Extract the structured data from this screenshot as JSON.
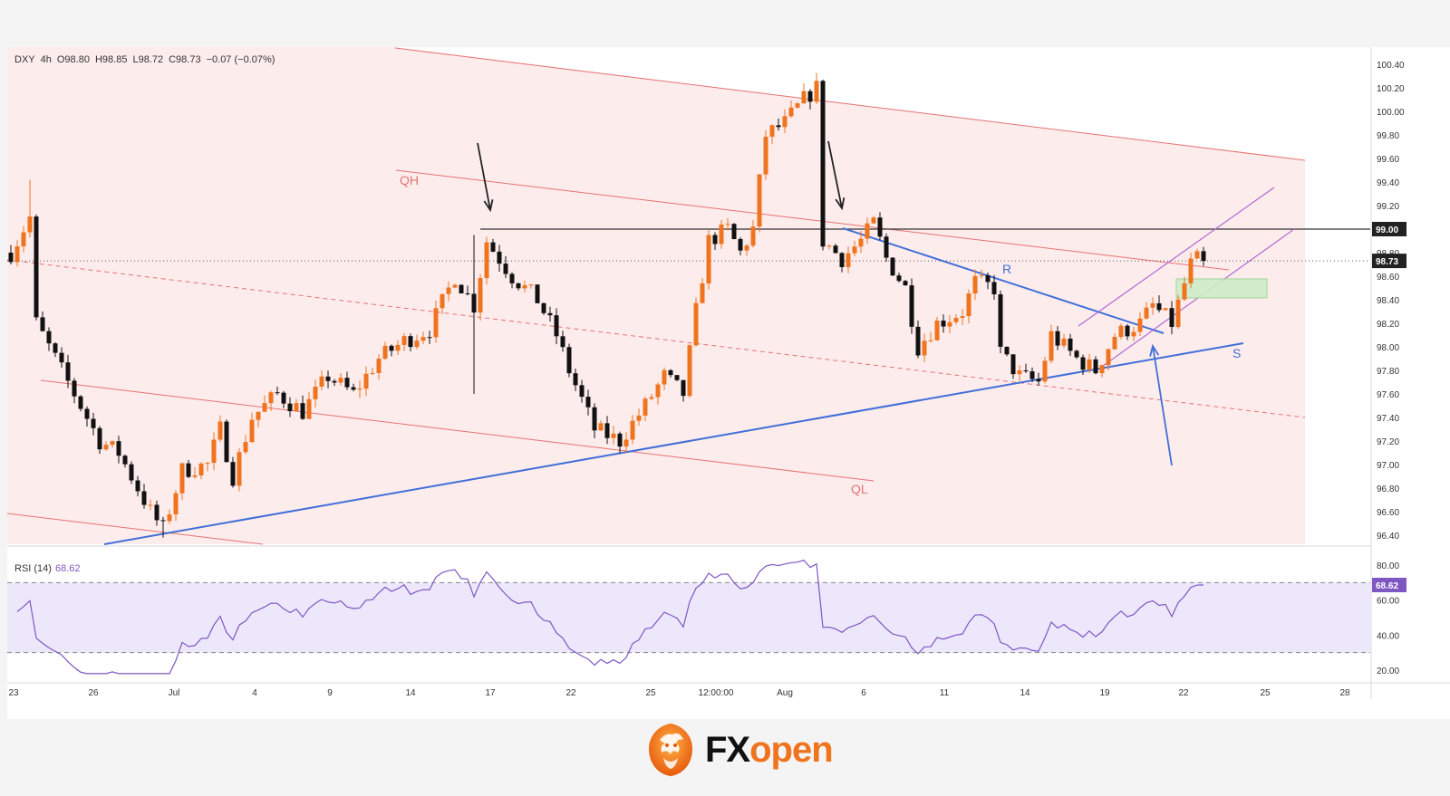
{
  "header": {
    "symbol": "DXY",
    "interval": "4h",
    "open": "O98.80",
    "high": "H98.85",
    "low": "L98.72",
    "close": "C98.73",
    "change": "−0.07 (−0.07%)"
  },
  "rsi": {
    "label": "RSI (14)",
    "value": "68.62"
  },
  "logo": {
    "fx": "FX",
    "open": "open"
  },
  "colors": {
    "up": "#f0731e",
    "down": "#111111",
    "channel": "#e57373",
    "channel_fill": "#fde9e9",
    "blue_line": "#3f6fd8",
    "purple": "#b36ad6",
    "rsi": "#7e57c2",
    "rsi_band": "#ede7fb",
    "zone": "#cdeec8"
  },
  "chart_data": [
    {
      "type": "candlestick",
      "title": "DXY, 4h",
      "y_ticks": [
        "100.40",
        "100.20",
        "100.00",
        "99.80",
        "99.60",
        "99.40",
        "99.20",
        "99.00",
        "98.80",
        "98.60",
        "98.40",
        "98.20",
        "98.00",
        "97.80",
        "97.60",
        "97.40",
        "97.20",
        "97.00",
        "96.80",
        "96.60",
        "96.40"
      ],
      "ylim": [
        96.35,
        100.45
      ],
      "x_ticks": [
        "23",
        "26",
        "Jul",
        "4",
        "9",
        "14",
        "17",
        "22",
        "25",
        "12:00:00",
        "Aug",
        "6",
        "11",
        "14",
        "19",
        "22",
        "25",
        "28"
      ],
      "price_labels": {
        "level": "99.00",
        "last": "98.73"
      },
      "path": [
        [
          0,
          98.8
        ],
        [
          3,
          99.1
        ],
        [
          4,
          98.2
        ],
        [
          7,
          97.9
        ],
        [
          10,
          97.6
        ],
        [
          14,
          97.2
        ],
        [
          17,
          97.1
        ],
        [
          22,
          96.6
        ],
        [
          24,
          96.45
        ],
        [
          27,
          96.95
        ],
        [
          31,
          97.0
        ],
        [
          33,
          97.3
        ],
        [
          35,
          96.9
        ],
        [
          38,
          97.4
        ],
        [
          42,
          97.6
        ],
        [
          46,
          97.45
        ],
        [
          50,
          97.75
        ],
        [
          54,
          97.6
        ],
        [
          58,
          97.9
        ],
        [
          62,
          98.05
        ],
        [
          66,
          98.15
        ],
        [
          70,
          98.6
        ],
        [
          73,
          98.35
        ],
        [
          75,
          98.9
        ],
        [
          79,
          98.6
        ],
        [
          83,
          98.4
        ],
        [
          86,
          98.1
        ],
        [
          88,
          97.8
        ],
        [
          92,
          97.3
        ],
        [
          96,
          97.2
        ],
        [
          100,
          97.5
        ],
        [
          103,
          97.75
        ],
        [
          106,
          97.6
        ],
        [
          108,
          98.3
        ],
        [
          110,
          98.9
        ],
        [
          113,
          99.0
        ],
        [
          115,
          98.8
        ],
        [
          117,
          99.0
        ],
        [
          119,
          99.8
        ],
        [
          122,
          99.9
        ],
        [
          125,
          100.1
        ],
        [
          127,
          100.2
        ],
        [
          128,
          98.9
        ],
        [
          131,
          98.75
        ],
        [
          134,
          98.9
        ],
        [
          136,
          99.05
        ],
        [
          138,
          98.75
        ],
        [
          141,
          98.5
        ],
        [
          143,
          98.0
        ],
        [
          146,
          98.2
        ],
        [
          150,
          98.3
        ],
        [
          152,
          98.55
        ],
        [
          155,
          98.5
        ],
        [
          156,
          97.95
        ],
        [
          159,
          97.75
        ],
        [
          162,
          97.7
        ],
        [
          164,
          98.1
        ],
        [
          168,
          97.9
        ],
        [
          171,
          97.8
        ],
        [
          174,
          98.1
        ],
        [
          178,
          98.2
        ],
        [
          180,
          98.35
        ],
        [
          183,
          98.2
        ],
        [
          186,
          98.7
        ],
        [
          188,
          98.78
        ]
      ],
      "annotations": {
        "QH": "QH",
        "QL": "QL",
        "R": "R",
        "S": "S"
      }
    },
    {
      "type": "line",
      "title": "RSI (14)",
      "y_ticks": [
        "80.00",
        "60.00",
        "40.00",
        "20.00"
      ],
      "ylim": [
        15,
        88
      ],
      "band": [
        30,
        70
      ],
      "series": [
        {
          "values": []
        }
      ]
    }
  ]
}
